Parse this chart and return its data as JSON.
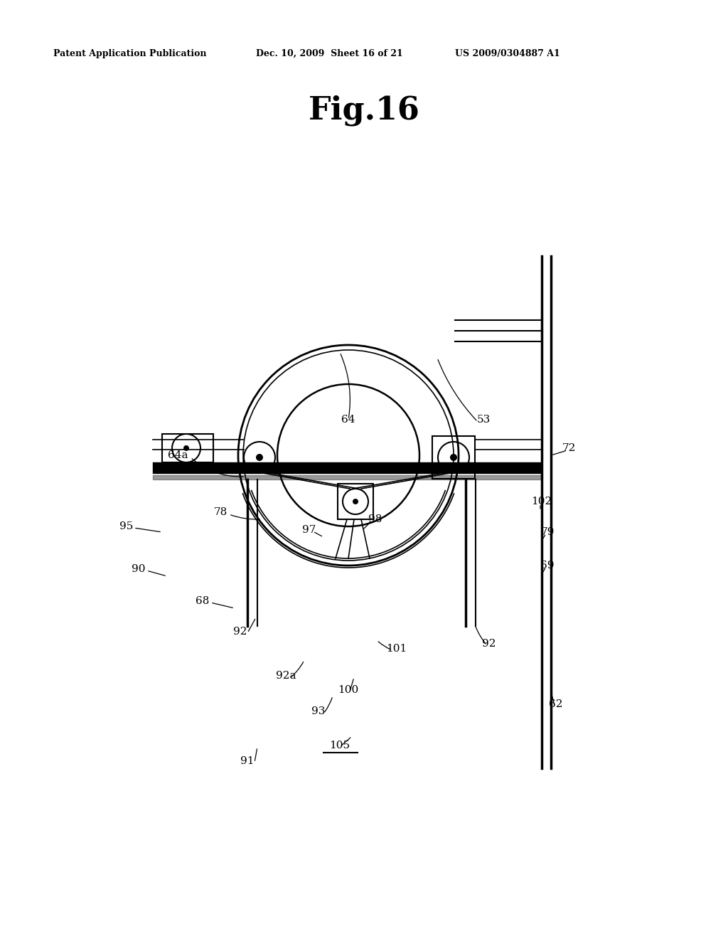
{
  "bg_color": "#ffffff",
  "header_text": "Patent Application Publication",
  "header_date": "Dec. 10, 2009  Sheet 16 of 21",
  "header_patent": "US 2009/0304887 A1",
  "fig_title": "Fig.16"
}
